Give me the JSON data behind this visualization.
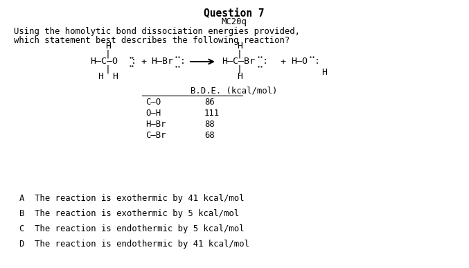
{
  "title": "Question 7",
  "subtitle": "MC20q",
  "q_line1": "Using the homolytic bond dissociation energies provided,",
  "q_line2": "which statement best describes the following reaction?",
  "bde_header": "B.D.E. (kcal/mol)",
  "bde_bonds": [
    "C–O",
    "O–H",
    "H–Br",
    "C–Br"
  ],
  "bde_values": [
    "86",
    "111",
    "88",
    "68"
  ],
  "choices": [
    "A  The reaction is exothermic by 41 kcal/mol",
    "B  The reaction is exothermic by 5 kcal/mol",
    "C  The reaction is endothermic by 5 kcal/mol",
    "D  The reaction is endothermic by 41 kcal/mol"
  ],
  "bg_color": "#ffffff",
  "text_color": "#000000",
  "title_fontsize": 10.5,
  "body_fontsize": 8.8,
  "chem_fontsize": 9.5
}
